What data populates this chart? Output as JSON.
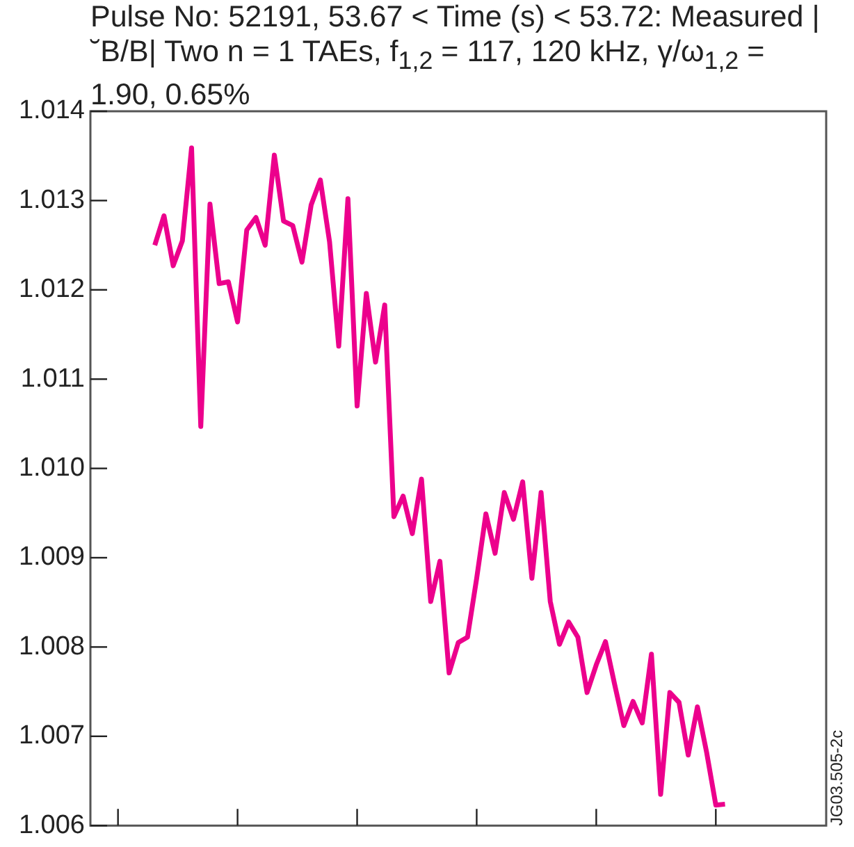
{
  "chart_data": {
    "type": "line",
    "title": "Pulse No: 52191, 53.67 < Time (s) < 53.72: Measured |˘B/B| Two n = 1 TAEs, f$_{1,2}$ = 117, 120 kHz, γ/ω$_{1,2}$ = 1.90, 0.65%",
    "categories": [
      null,
      null,
      null,
      null,
      null,
      null,
      null,
      null,
      null,
      null,
      null,
      null,
      null,
      null,
      null,
      null,
      null,
      null,
      null,
      null,
      null,
      null,
      null,
      null,
      null,
      null,
      null,
      null,
      null,
      null,
      null,
      null,
      null,
      null,
      null,
      null,
      null,
      null,
      null,
      null,
      null,
      null,
      null,
      null,
      null,
      null,
      null,
      null,
      null,
      null,
      null,
      null,
      null,
      null,
      null,
      null,
      null,
      null,
      null,
      null,
      null,
      null,
      null,
      null,
      null,
      null,
      null,
      null,
      null,
      null,
      null,
      null,
      null,
      null,
      null,
      null,
      null,
      null,
      null,
      null,
      null
    ],
    "series": [
      {
        "color": "#ec008c",
        "values": [
          null,
          null,
          null,
          null,
          null,
          null,
          null,
          1.0125,
          1.01283,
          1.01227,
          1.01255,
          1.01359,
          1.01047,
          1.01296,
          1.01207,
          1.01209,
          1.01164,
          1.01267,
          1.01281,
          1.0125,
          1.01351,
          1.01277,
          1.01272,
          1.01231,
          1.01295,
          1.01323,
          1.01254,
          1.01137,
          1.01302,
          1.0107,
          1.01196,
          1.01119,
          1.01183,
          1.00946,
          1.00969,
          1.00927,
          1.00988,
          1.00851,
          1.00896,
          1.00771,
          1.00805,
          1.00811,
          1.00877,
          1.00949,
          1.00905,
          1.00973,
          1.00943,
          1.00985,
          1.00877,
          1.00973,
          1.00851,
          1.00803,
          1.00828,
          1.00811,
          1.00749,
          1.0078,
          1.00806,
          1.00758,
          1.00712,
          1.00739,
          1.00715,
          1.00792,
          1.00635,
          1.00749,
          1.00738,
          1.00679,
          1.00733,
          1.00682,
          1.00623,
          1.00624,
          null,
          null,
          null,
          null,
          null,
          null,
          null,
          null,
          null,
          null,
          null
        ]
      }
    ],
    "ylim": [
      1.006,
      1.014
    ],
    "yticks": [
      {
        "value": 1.006,
        "label": "1.006"
      },
      {
        "value": 1.007,
        "label": "1.007"
      },
      {
        "value": 1.008,
        "label": "1.008"
      },
      {
        "value": 1.009,
        "label": "1.009"
      },
      {
        "value": 1.01,
        "label": "1.010"
      },
      {
        "value": 1.011,
        "label": "1.011"
      },
      {
        "value": 1.012,
        "label": "1.012"
      },
      {
        "value": 1.013,
        "label": "1.013"
      },
      {
        "value": 1.014,
        "label": "1.014"
      }
    ],
    "tick_labels": "y",
    "annotations": [
      "JG03.505-2c"
    ]
  }
}
